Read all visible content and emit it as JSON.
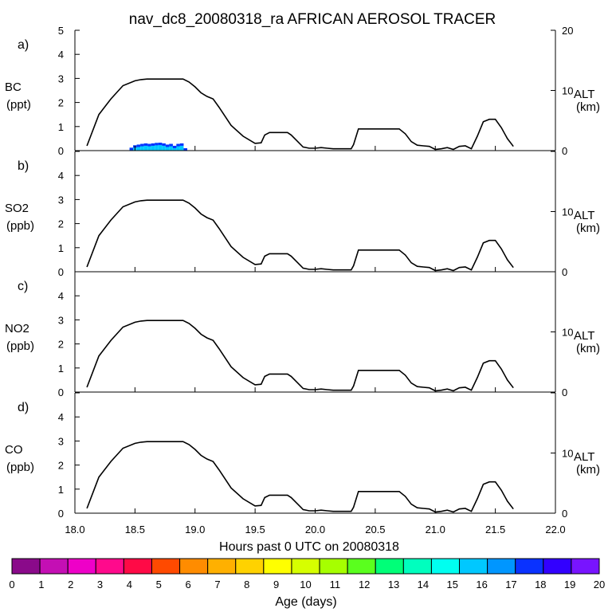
{
  "chart_data": {
    "type": "line",
    "title": "nav_dc8_20080318_ra AFRICAN AEROSOL TRACER",
    "xlabel": "Hours past 0 UTC on 20080318",
    "xlim": [
      18.0,
      22.0
    ],
    "x_ticks": [
      "18.0",
      "18.5",
      "19.0",
      "19.5",
      "20.0",
      "20.5",
      "21.0",
      "21.5",
      "22.0"
    ],
    "left_ylim": [
      0,
      5
    ],
    "left_ticks": [
      "0",
      "1",
      "2",
      "3",
      "4",
      "5"
    ],
    "right_ylim": [
      0,
      20
    ],
    "right_tick_labels": [
      "0",
      "10",
      "20"
    ],
    "right_ylabel": "ALT",
    "right_units": "(km)",
    "panels": [
      {
        "letter": "a)",
        "species": "BC",
        "units": "(ppt)"
      },
      {
        "letter": "b)",
        "species": "SO2",
        "units": "(ppb)"
      },
      {
        "letter": "c)",
        "species": "NO2",
        "units": "(ppb)"
      },
      {
        "letter": "d)",
        "species": "CO",
        "units": "(ppb)"
      }
    ],
    "altitude_km": {
      "x": [
        18.1,
        18.2,
        18.3,
        18.4,
        18.5,
        18.55,
        18.6,
        18.7,
        18.8,
        18.9,
        18.95,
        19.0,
        19.05,
        19.1,
        19.15,
        19.2,
        19.3,
        19.4,
        19.5,
        19.55,
        19.58,
        19.62,
        19.7,
        19.77,
        19.8,
        19.85,
        19.9,
        19.95,
        20.0,
        20.05,
        20.1,
        20.15,
        20.2,
        20.3,
        20.32,
        20.36,
        20.5,
        20.7,
        20.75,
        20.8,
        20.85,
        20.9,
        20.95,
        21.0,
        21.05,
        21.1,
        21.15,
        21.2,
        21.25,
        21.3,
        21.35,
        21.4,
        21.45,
        21.5,
        21.55,
        21.6,
        21.65
      ],
      "y": [
        0.8,
        6.0,
        8.6,
        10.8,
        11.6,
        11.8,
        11.9,
        11.9,
        11.9,
        11.9,
        11.4,
        10.6,
        9.6,
        9.0,
        8.6,
        7.2,
        4.2,
        2.4,
        1.2,
        1.3,
        2.6,
        3.0,
        3.0,
        3.0,
        2.6,
        1.6,
        0.6,
        0.4,
        0.4,
        0.5,
        0.4,
        0.3,
        0.3,
        0.3,
        1.0,
        3.6,
        3.6,
        3.6,
        2.8,
        1.5,
        0.9,
        0.8,
        0.7,
        0.2,
        0.3,
        0.5,
        0.2,
        0.7,
        0.8,
        0.3,
        2.4,
        4.8,
        5.2,
        5.2,
        3.8,
        2.0,
        0.7
      ]
    },
    "bc_tracer_ppt": {
      "x": [
        18.47,
        18.5,
        18.53,
        18.56,
        18.59,
        18.62,
        18.65,
        18.68,
        18.71,
        18.74,
        18.77,
        18.8,
        18.83,
        18.86,
        18.89,
        18.92
      ],
      "y": [
        0.12,
        0.22,
        0.25,
        0.28,
        0.3,
        0.28,
        0.3,
        0.32,
        0.33,
        0.3,
        0.25,
        0.28,
        0.2,
        0.28,
        0.3,
        0.1
      ],
      "age_days": 16
    },
    "colorbar": {
      "label": "Age (days)",
      "ticks": [
        "0",
        "1",
        "2",
        "3",
        "4",
        "5",
        "6",
        "7",
        "8",
        "9",
        "10",
        "11",
        "12",
        "13",
        "14",
        "15",
        "16",
        "17",
        "18",
        "19",
        "20"
      ],
      "colors": [
        "#8a0a8a",
        "#c40fb4",
        "#ee00c8",
        "#ff0a8c",
        "#ff0a46",
        "#ff4a00",
        "#ff8c00",
        "#ffb000",
        "#ffd200",
        "#ffff00",
        "#d6ff00",
        "#a6ff00",
        "#5aff1e",
        "#00ff78",
        "#00ffbe",
        "#00fff0",
        "#00c8ff",
        "#0096ff",
        "#0a32ff",
        "#3200ff",
        "#7814ff"
      ]
    }
  }
}
